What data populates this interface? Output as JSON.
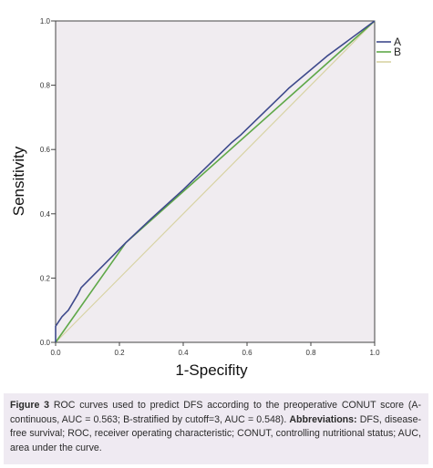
{
  "chart_data": {
    "type": "line",
    "xlabel": "1-Specifity",
    "ylabel": "Sensitivity",
    "xlim": [
      0,
      1
    ],
    "ylim": [
      0,
      1
    ],
    "x_ticks": [
      "0.0",
      "0.2",
      "0.4",
      "0.6",
      "0.8",
      "1.0"
    ],
    "y_ticks": [
      "0.0",
      "0.2",
      "0.4",
      "0.6",
      "0.8",
      "1.0"
    ],
    "grid": false,
    "legend_position": "top-right",
    "series": [
      {
        "name": "A",
        "color": "#3e4a8c",
        "x": [
          0,
          0,
          0.02,
          0.04,
          0.07,
          0.08,
          0.12,
          0.13,
          0.21,
          0.22,
          0.3,
          0.4,
          0.55,
          0.58,
          0.72,
          0.73,
          0.85,
          1.0
        ],
        "y": [
          0,
          0.05,
          0.08,
          0.1,
          0.15,
          0.17,
          0.21,
          0.22,
          0.3,
          0.31,
          0.385,
          0.475,
          0.62,
          0.645,
          0.78,
          0.79,
          0.89,
          1.0
        ]
      },
      {
        "name": "B",
        "color": "#5fa848",
        "x": [
          0,
          0.22,
          1.0
        ],
        "y": [
          0,
          0.31,
          1.0
        ]
      },
      {
        "name": "",
        "color": "#d8d3a4",
        "x": [
          0,
          1.0
        ],
        "y": [
          0,
          1.0
        ]
      }
    ],
    "plot_background": "#f0ecf0"
  },
  "caption": {
    "label": "Figure 3",
    "text": " ROC curves used to predict DFS according to the preoperative CONUT score (A-continuous, AUC = 0.563; B-stratified by cutoff=3, AUC = 0.548).",
    "abbrev_label": "Abbreviations:",
    "abbrev_text": " DFS, disease-free survival; ROC, receiver operating characteristic; CONUT, controlling nutritional status; AUC, area under the curve."
  }
}
